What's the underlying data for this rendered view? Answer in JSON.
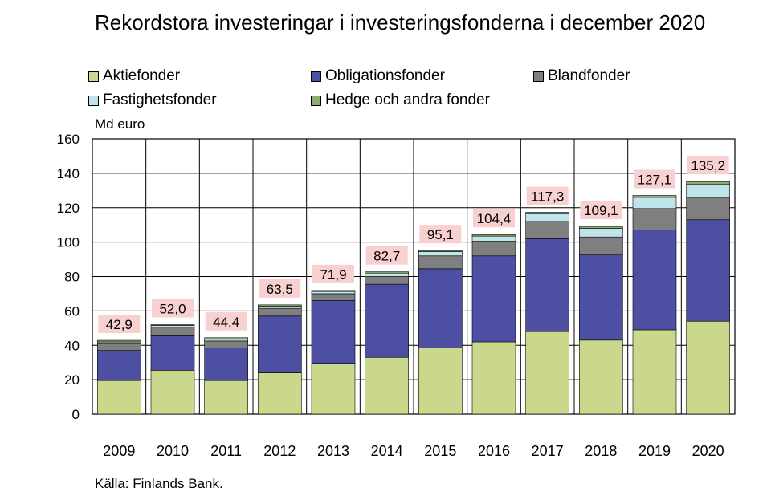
{
  "chart_data": {
    "type": "bar",
    "stacked": true,
    "title": "Rekordstora investeringar i investeringsfonderna i december 2020",
    "ylabel": "Md euro",
    "source": "Källa: Finlands Bank.",
    "ylim": [
      0,
      160
    ],
    "yticks": [
      0,
      20,
      40,
      60,
      80,
      100,
      120,
      140,
      160
    ],
    "categories": [
      "2009",
      "2010",
      "2011",
      "2012",
      "2013",
      "2014",
      "2015",
      "2016",
      "2017",
      "2018",
      "2019",
      "2020"
    ],
    "totals": [
      "42,9",
      "52,0",
      "44,4",
      "63,5",
      "71,9",
      "82,7",
      "95,1",
      "104,4",
      "117,3",
      "109,1",
      "127,1",
      "135,2"
    ],
    "totals_values": [
      42.9,
      52.0,
      44.4,
      63.5,
      71.9,
      82.7,
      95.1,
      104.4,
      117.3,
      109.1,
      127.1,
      135.2
    ],
    "series": [
      {
        "name": "Aktiefonder",
        "color": "#c9d88b",
        "values": [
          19.5,
          25.5,
          19.5,
          24,
          29.5,
          33,
          38.5,
          42,
          48,
          43,
          49,
          54
        ]
      },
      {
        "name": "Obligationsfonder",
        "color": "#4d4fa3",
        "values": [
          17.5,
          20,
          19,
          33,
          36.5,
          42.5,
          46,
          50,
          54,
          49.5,
          58,
          59
        ]
      },
      {
        "name": "Blandfonder",
        "color": "#7f7f7f",
        "values": [
          4,
          5,
          4,
          4.5,
          4,
          4.5,
          7.5,
          8.5,
          10,
          10.5,
          12.5,
          13
        ]
      },
      {
        "name": "Fastighetsfonder",
        "color": "#bfe4ea",
        "values": [
          1,
          1,
          1,
          1.3,
          1.3,
          2,
          2.5,
          3,
          4.5,
          5,
          6.5,
          7.5
        ]
      },
      {
        "name": "Hedge och andra fonder",
        "color": "#8fae6e",
        "values": [
          0.9,
          0.5,
          0.9,
          0.7,
          0.6,
          0.7,
          0.6,
          0.9,
          0.8,
          1.1,
          1.1,
          1.7
        ]
      }
    ],
    "legend": [
      "Aktiefonder",
      "Obligationsfonder",
      "Blandfonder",
      "Fastighetsfonder",
      "Hedge och andra fonder"
    ],
    "grid": true
  }
}
